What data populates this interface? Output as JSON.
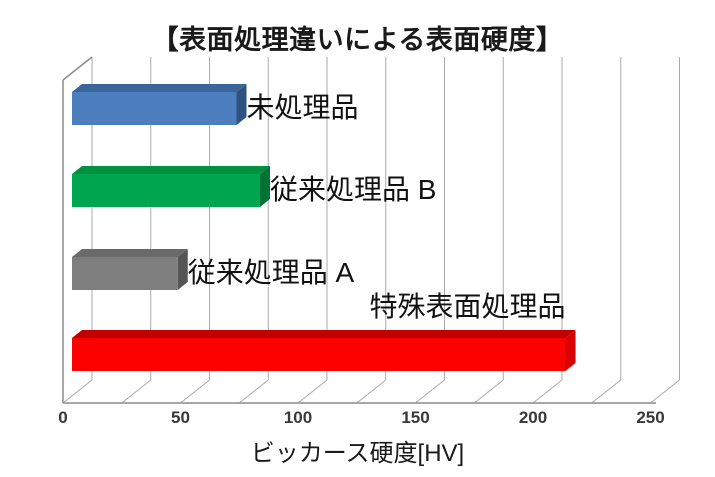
{
  "chart_data": {
    "type": "bar",
    "orientation": "horizontal-3d",
    "title": "【表面処理違いによる表面硬度】",
    "xlabel": "ビッカース硬度[HV]",
    "categories": [
      "未処理品",
      "従来処理品 B",
      "従来処理品 A",
      "特殊表面処理品"
    ],
    "values": [
      70,
      80,
      45,
      210
    ],
    "xlim": [
      0,
      250
    ],
    "x_ticks": [
      0,
      50,
      100,
      150,
      200,
      250
    ],
    "x_tick_step": 50,
    "grid_step": 25,
    "grid": true,
    "legend": false,
    "label_positions": [
      "end",
      "end",
      "end",
      "above"
    ],
    "bar_colors": [
      {
        "front": "#4D7EBE",
        "top": "#3A659B",
        "side": "#2E5380"
      },
      {
        "front": "#00A64F",
        "top": "#00913F",
        "side": "#007233"
      },
      {
        "front": "#7E7E7E",
        "top": "#6A6A6A",
        "side": "#555555"
      },
      {
        "front": "#FD0000",
        "top": "#BF0000",
        "side": "#DB0000"
      }
    ],
    "grid_color": "#ABABAB",
    "axis_color": "#8C8C8C"
  }
}
